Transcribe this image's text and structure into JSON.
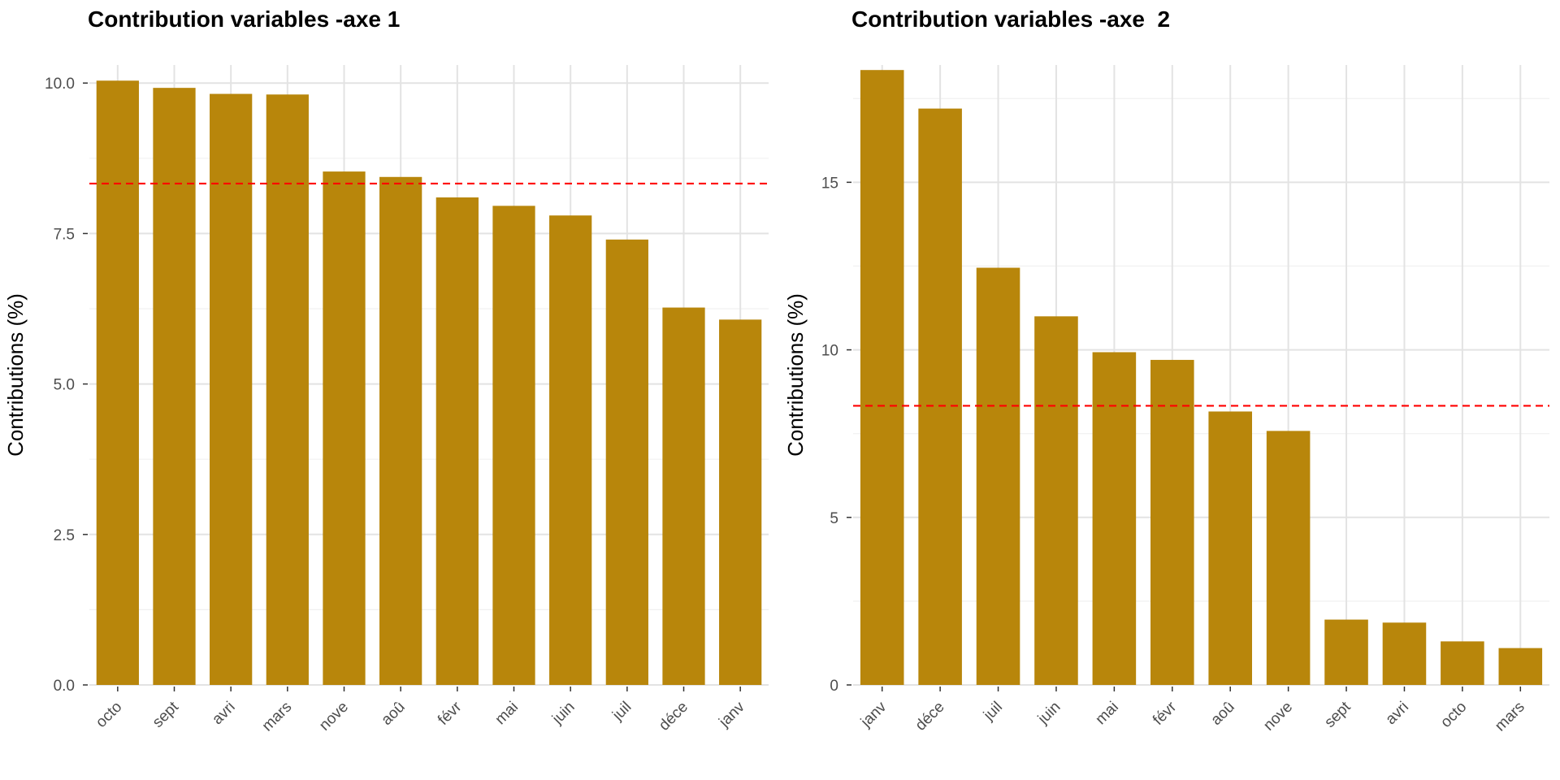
{
  "chart_data": [
    {
      "type": "bar",
      "title": "Contribution variables -axe 1",
      "xlabel": "",
      "ylabel": "Contributions (%)",
      "categories": [
        "octo",
        "sept",
        "avri",
        "mars",
        "nove",
        "aoû",
        "févr",
        "mai",
        "juin",
        "juil",
        "déce",
        "janv"
      ],
      "values": [
        10.04,
        9.92,
        9.82,
        9.81,
        8.53,
        8.44,
        8.1,
        7.96,
        7.8,
        7.4,
        6.27,
        6.07
      ],
      "reference_line": 8.33,
      "ylim": [
        0,
        10.3
      ],
      "yticks": [
        0.0,
        2.5,
        5.0,
        7.5,
        10.0
      ],
      "ytick_labels": [
        "0.0",
        "2.5",
        "5.0",
        "7.5",
        "10.0"
      ],
      "grid": true,
      "bar_color": "#b8860b",
      "reference_line_color": "#ff0000"
    },
    {
      "type": "bar",
      "title": "Contribution variables -axe  2",
      "xlabel": "",
      "ylabel": "Contributions (%)",
      "categories": [
        "janv",
        "déce",
        "juil",
        "juin",
        "mai",
        "févr",
        "aoû",
        "nove",
        "sept",
        "avri",
        "octo",
        "mars"
      ],
      "values": [
        18.35,
        17.2,
        12.45,
        11.0,
        9.93,
        9.7,
        8.16,
        7.58,
        1.95,
        1.86,
        1.3,
        1.1
      ],
      "reference_line": 8.33,
      "ylim": [
        0,
        18.5
      ],
      "yticks": [
        0,
        5,
        10,
        15
      ],
      "ytick_labels": [
        "0",
        "5",
        "10",
        "15"
      ],
      "grid": true,
      "bar_color": "#b8860b",
      "reference_line_color": "#ff0000"
    }
  ]
}
